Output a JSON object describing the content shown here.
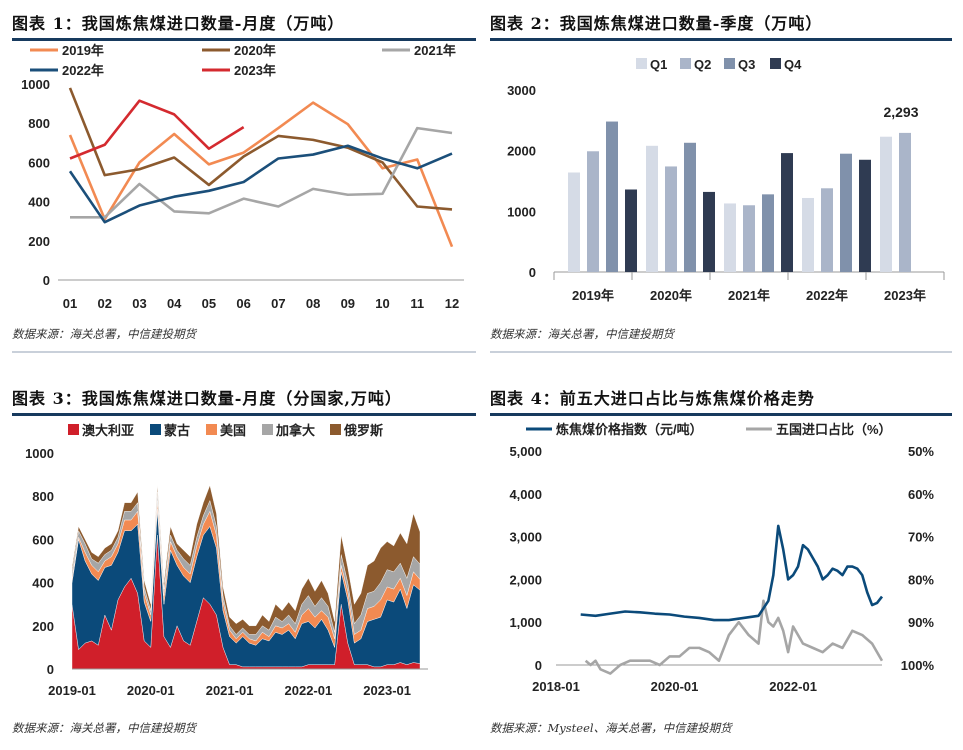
{
  "panels": [
    {
      "title": "图表 1：我国炼焦煤进口数量-月度（万吨）",
      "source": "数据来源：海关总署，中信建投期货"
    },
    {
      "title": "图表 2：我国炼焦煤进口数量-季度（万吨）",
      "source": "数据来源：海关总署，中信建投期货"
    },
    {
      "title": "图表 3：我国炼焦煤进口数量-月度（分国家,万吨）",
      "source": "数据来源：海关总署，中信建投期货"
    },
    {
      "title": "图表 4：前五大进口占比与炼焦煤价格走势",
      "source": "数据来源：Mysteel、海关总署，中信建投期货"
    }
  ],
  "chart_data": [
    {
      "type": "line",
      "categories": [
        "01",
        "02",
        "03",
        "04",
        "05",
        "06",
        "07",
        "08",
        "09",
        "10",
        "11",
        "12"
      ],
      "ylim": [
        0,
        1000
      ],
      "yticks": [
        0,
        200,
        400,
        600,
        800,
        1000
      ],
      "legend_position": "top",
      "series": [
        {
          "name": "2019年",
          "color": "#f28a52",
          "values": [
            740,
            310,
            600,
            745,
            590,
            650,
            775,
            905,
            795,
            570,
            615,
            170
          ]
        },
        {
          "name": "2020年",
          "color": "#8c5a2e",
          "values": [
            980,
            535,
            565,
            625,
            485,
            630,
            735,
            715,
            675,
            600,
            375,
            360
          ]
        },
        {
          "name": "2021年",
          "color": "#a6a6a6",
          "values": [
            320,
            320,
            490,
            350,
            340,
            415,
            375,
            465,
            435,
            440,
            775,
            750
          ]
        },
        {
          "name": "2022年",
          "color": "#1b4f7a",
          "values": [
            555,
            295,
            380,
            425,
            455,
            500,
            620,
            640,
            685,
            620,
            570,
            645
          ]
        },
        {
          "name": "2023年",
          "color": "#d42a2f",
          "values": [
            620,
            690,
            915,
            845,
            670,
            780,
            null,
            null,
            null,
            null,
            null,
            null
          ]
        }
      ]
    },
    {
      "type": "bar",
      "categories": [
        "2019年",
        "2020年",
        "2021年",
        "2022年",
        "2023年"
      ],
      "ylim": [
        0,
        3000
      ],
      "yticks": [
        0,
        1000,
        2000,
        3000
      ],
      "legend_position": "top",
      "series": [
        {
          "name": "Q1",
          "color": "#d5dbe6",
          "values": [
            1640,
            2080,
            1130,
            1220,
            2230
          ]
        },
        {
          "name": "Q2",
          "color": "#aab5c9",
          "values": [
            1990,
            1740,
            1100,
            1380,
            2293
          ]
        },
        {
          "name": "Q3",
          "color": "#8091ab",
          "values": [
            2480,
            2130,
            1280,
            1950,
            null
          ]
        },
        {
          "name": "Q4",
          "color": "#2f3b52",
          "values": [
            1360,
            1320,
            1960,
            1850,
            null
          ]
        }
      ],
      "annotations": [
        {
          "category": "2023年",
          "series": "Q2",
          "text": "2,293"
        }
      ]
    },
    {
      "type": "area",
      "stacked": true,
      "x_start": "2019-01",
      "x_end": "2023-06",
      "xticks": [
        "2019-01",
        "2020-01",
        "2021-01",
        "2022-01",
        "2023-01"
      ],
      "ylim": [
        0,
        1000
      ],
      "yticks": [
        0,
        200,
        400,
        600,
        800,
        1000
      ],
      "legend_position": "top",
      "series": [
        {
          "name": "澳大利亚",
          "color": "#d01f2a",
          "values": [
            300,
            90,
            120,
            130,
            110,
            250,
            180,
            320,
            380,
            420,
            350,
            130,
            100,
            620,
            150,
            100,
            200,
            130,
            110,
            220,
            330,
            300,
            250,
            100,
            20,
            20,
            10,
            10,
            10,
            10,
            10,
            10,
            10,
            10,
            10,
            10,
            20,
            20,
            20,
            20,
            20,
            300,
            120,
            20,
            20,
            20,
            10,
            10,
            20,
            20,
            30,
            20,
            30,
            25,
            30
          ]
        },
        {
          "name": "蒙古",
          "color": "#0b4a7a",
          "values": [
            100,
            510,
            380,
            310,
            300,
            220,
            300,
            220,
            260,
            220,
            320,
            180,
            120,
            120,
            150,
            450,
            280,
            300,
            290,
            300,
            290,
            360,
            310,
            170,
            130,
            100,
            140,
            110,
            100,
            130,
            120,
            160,
            150,
            170,
            130,
            200,
            200,
            170,
            210,
            160,
            80,
            150,
            200,
            100,
            120,
            200,
            220,
            230,
            300,
            290,
            340,
            260,
            360,
            340,
            380
          ]
        },
        {
          "name": "美国",
          "color": "#f28a52",
          "values": [
            20,
            10,
            40,
            40,
            40,
            30,
            40,
            40,
            50,
            50,
            60,
            40,
            30,
            40,
            40,
            40,
            40,
            40,
            40,
            50,
            50,
            70,
            60,
            40,
            30,
            20,
            20,
            20,
            20,
            30,
            20,
            30,
            30,
            30,
            30,
            40,
            60,
            50,
            40,
            60,
            40,
            30,
            40,
            40,
            40,
            60,
            60,
            80,
            60,
            60,
            50,
            60,
            60,
            50,
            60
          ]
        },
        {
          "name": "加拿大",
          "color": "#a6a6a6",
          "values": [
            30,
            30,
            40,
            30,
            40,
            30,
            30,
            30,
            40,
            40,
            40,
            30,
            20,
            40,
            30,
            30,
            30,
            40,
            40,
            40,
            40,
            50,
            40,
            30,
            20,
            20,
            20,
            20,
            30,
            30,
            30,
            40,
            30,
            40,
            40,
            50,
            60,
            50,
            60,
            50,
            30,
            50,
            40,
            50,
            70,
            70,
            70,
            80,
            80,
            80,
            70,
            80,
            70,
            70,
            60
          ]
        },
        {
          "name": "俄罗斯",
          "color": "#8c5a2e",
          "values": [
            20,
            20,
            20,
            30,
            30,
            30,
            30,
            30,
            40,
            40,
            50,
            30,
            30,
            30,
            30,
            40,
            30,
            40,
            40,
            60,
            60,
            70,
            60,
            40,
            40,
            50,
            40,
            40,
            40,
            50,
            40,
            60,
            50,
            60,
            60,
            70,
            80,
            70,
            80,
            60,
            50,
            90,
            70,
            90,
            100,
            130,
            140,
            160,
            130,
            120,
            140,
            160,
            200,
            150,
            180
          ]
        }
      ]
    },
    {
      "type": "line",
      "dual_axis": true,
      "x_start": "2018-01",
      "x_end": "2023-07",
      "xticks": [
        "2018-01",
        "2020-01",
        "2022-01"
      ],
      "ylim_left": [
        0,
        5000
      ],
      "yticks_left": [
        "0",
        "1,000",
        "2,000",
        "3,000",
        "4,000",
        "5,000"
      ],
      "ylim_right": [
        100,
        50
      ],
      "yticks_right": [
        "100%",
        "90%",
        "80%",
        "70%",
        "60%",
        "50%"
      ],
      "right_axis_inverted": true,
      "legend_position": "top",
      "series": [
        {
          "name": "炼焦煤价格指数（元/吨）",
          "color": "#0b4a7a",
          "axis": "left",
          "x": [
            "2018-06",
            "2018-09",
            "2018-12",
            "2019-03",
            "2019-06",
            "2019-09",
            "2019-12",
            "2020-03",
            "2020-06",
            "2020-09",
            "2020-12",
            "2021-03",
            "2021-06",
            "2021-08",
            "2021-09",
            "2021-10",
            "2021-11",
            "2021-12",
            "2022-01",
            "2022-02",
            "2022-03",
            "2022-04",
            "2022-05",
            "2022-06",
            "2022-07",
            "2022-08",
            "2022-09",
            "2022-10",
            "2022-11",
            "2022-12",
            "2023-01",
            "2023-02",
            "2023-03",
            "2023-04",
            "2023-05",
            "2023-06",
            "2023-07"
          ],
          "values": [
            1180,
            1150,
            1200,
            1250,
            1230,
            1200,
            1180,
            1130,
            1100,
            1050,
            1050,
            1100,
            1150,
            1500,
            2100,
            3250,
            2700,
            2000,
            2100,
            2300,
            2800,
            2700,
            2500,
            2300,
            2000,
            2100,
            2250,
            2200,
            2100,
            2300,
            2300,
            2250,
            2100,
            1700,
            1400,
            1450,
            1600
          ]
        },
        {
          "name": "五国进口占比（%）",
          "color": "#a6a6a6",
          "axis": "right",
          "x": [
            "2018-07",
            "2018-08",
            "2018-09",
            "2018-10",
            "2018-12",
            "2019-02",
            "2019-04",
            "2019-06",
            "2019-08",
            "2019-10",
            "2019-12",
            "2020-02",
            "2020-04",
            "2020-06",
            "2020-08",
            "2020-10",
            "2020-12",
            "2021-02",
            "2021-04",
            "2021-06",
            "2021-07",
            "2021-08",
            "2021-09",
            "2021-10",
            "2021-11",
            "2021-12",
            "2022-01",
            "2022-03",
            "2022-05",
            "2022-07",
            "2022-09",
            "2022-11",
            "2023-01",
            "2023-03",
            "2023-05",
            "2023-07"
          ],
          "values": [
            99,
            100,
            99,
            101,
            102,
            100,
            99,
            99,
            99,
            100,
            98,
            98,
            96,
            96,
            97,
            99,
            93,
            90,
            93,
            95,
            85,
            90,
            91,
            89,
            92,
            97,
            91,
            95,
            96,
            97,
            95,
            96,
            92,
            93,
            95,
            99
          ]
        }
      ]
    }
  ]
}
